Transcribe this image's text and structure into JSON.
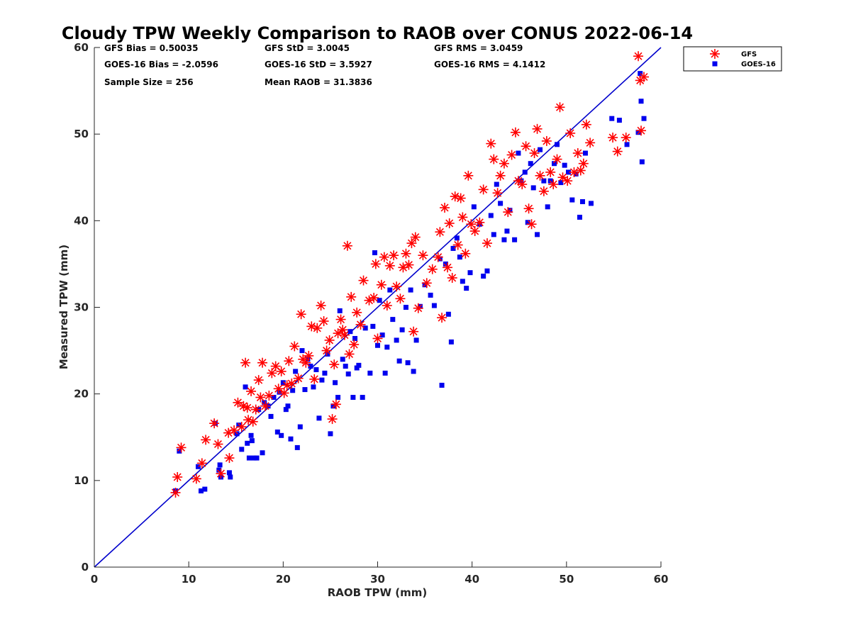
{
  "chart_data": {
    "type": "scatter",
    "title": "Cloudy TPW Weekly Comparison to RAOB over CONUS 2022-06-14",
    "xlabel": "RAOB TPW (mm)",
    "ylabel": "Measured TPW (mm)",
    "xlim": [
      0,
      60
    ],
    "ylim": [
      0,
      60
    ],
    "xticks": [
      "0",
      "10",
      "20",
      "30",
      "40",
      "50",
      "60"
    ],
    "yticks": [
      "0",
      "10",
      "20",
      "30",
      "40",
      "50",
      "60"
    ],
    "grid": false,
    "legend_position": "outside-top-right",
    "reference_line": {
      "from": [
        0,
        0
      ],
      "to": [
        60,
        60
      ],
      "color": "#0000cc"
    },
    "stats": {
      "gfs_bias": "GFS Bias = 0.50035",
      "gfs_std": "GFS StD = 3.0045",
      "gfs_rms": "GFS RMS = 3.0459",
      "goes_bias": "GOES-16 Bias = -2.0596",
      "goes_std": "GOES-16 StD = 3.5927",
      "goes_rms": "GOES-16 RMS = 4.1412",
      "sample_size": "Sample Size = 256",
      "mean_raob": "Mean RAOB = 31.3836"
    },
    "series": [
      {
        "name": "GFS",
        "marker": "asterisk",
        "color": "#ff0000",
        "points": [
          [
            8.6,
            8.6
          ],
          [
            8.8,
            10.4
          ],
          [
            9.2,
            13.8
          ],
          [
            10.8,
            10.2
          ],
          [
            11.4,
            12.0
          ],
          [
            11.8,
            14.7
          ],
          [
            12.7,
            16.6
          ],
          [
            13.1,
            14.2
          ],
          [
            13.4,
            10.8
          ],
          [
            14.2,
            15.5
          ],
          [
            14.3,
            12.6
          ],
          [
            14.8,
            15.8
          ],
          [
            15.2,
            19.0
          ],
          [
            15.6,
            16.2
          ],
          [
            15.8,
            18.6
          ],
          [
            16.0,
            23.6
          ],
          [
            16.2,
            18.4
          ],
          [
            16.3,
            17.0
          ],
          [
            16.6,
            20.3
          ],
          [
            16.8,
            16.8
          ],
          [
            17.1,
            18.2
          ],
          [
            17.4,
            21.6
          ],
          [
            17.6,
            19.6
          ],
          [
            17.8,
            23.6
          ],
          [
            18.1,
            18.6
          ],
          [
            18.5,
            19.8
          ],
          [
            18.8,
            22.4
          ],
          [
            19.2,
            23.2
          ],
          [
            19.5,
            20.6
          ],
          [
            19.8,
            22.6
          ],
          [
            20.1,
            20.1
          ],
          [
            20.4,
            21.0
          ],
          [
            20.6,
            23.8
          ],
          [
            20.9,
            21.2
          ],
          [
            21.2,
            25.5
          ],
          [
            21.6,
            21.8
          ],
          [
            21.9,
            29.2
          ],
          [
            22.1,
            24.0
          ],
          [
            22.4,
            23.6
          ],
          [
            22.7,
            24.4
          ],
          [
            23.0,
            27.8
          ],
          [
            23.3,
            21.7
          ],
          [
            23.6,
            27.6
          ],
          [
            24.0,
            30.2
          ],
          [
            24.3,
            28.4
          ],
          [
            24.6,
            25.0
          ],
          [
            24.9,
            26.2
          ],
          [
            25.2,
            17.1
          ],
          [
            25.4,
            23.4
          ],
          [
            25.6,
            18.8
          ],
          [
            25.8,
            27.0
          ],
          [
            26.1,
            28.6
          ],
          [
            26.3,
            27.4
          ],
          [
            26.5,
            26.8
          ],
          [
            26.8,
            37.1
          ],
          [
            27.0,
            24.6
          ],
          [
            27.2,
            31.2
          ],
          [
            27.5,
            25.7
          ],
          [
            27.8,
            29.4
          ],
          [
            28.2,
            28.0
          ],
          [
            28.5,
            33.1
          ],
          [
            29.1,
            30.8
          ],
          [
            29.6,
            31.1
          ],
          [
            29.8,
            35.0
          ],
          [
            30.0,
            26.4
          ],
          [
            30.4,
            32.6
          ],
          [
            30.7,
            35.8
          ],
          [
            31.0,
            30.2
          ],
          [
            31.3,
            34.8
          ],
          [
            31.7,
            36.0
          ],
          [
            32.0,
            32.4
          ],
          [
            32.4,
            31.0
          ],
          [
            32.7,
            34.6
          ],
          [
            33.0,
            36.2
          ],
          [
            33.3,
            34.9
          ],
          [
            33.6,
            37.4
          ],
          [
            33.8,
            27.2
          ],
          [
            34.0,
            38.1
          ],
          [
            34.3,
            29.9
          ],
          [
            34.8,
            36.0
          ],
          [
            35.2,
            32.8
          ],
          [
            35.8,
            34.4
          ],
          [
            36.4,
            35.8
          ],
          [
            36.6,
            38.7
          ],
          [
            36.8,
            28.8
          ],
          [
            37.1,
            41.5
          ],
          [
            37.4,
            34.6
          ],
          [
            37.6,
            39.7
          ],
          [
            37.9,
            33.4
          ],
          [
            38.2,
            42.8
          ],
          [
            38.5,
            37.2
          ],
          [
            38.8,
            42.6
          ],
          [
            39.0,
            40.4
          ],
          [
            39.3,
            36.2
          ],
          [
            39.6,
            45.2
          ],
          [
            39.9,
            39.6
          ],
          [
            40.3,
            38.8
          ],
          [
            40.8,
            39.8
          ],
          [
            41.2,
            43.6
          ],
          [
            41.6,
            37.4
          ],
          [
            42.0,
            48.9
          ],
          [
            42.3,
            47.1
          ],
          [
            42.7,
            43.2
          ],
          [
            43.0,
            45.2
          ],
          [
            43.4,
            46.6
          ],
          [
            43.8,
            41.0
          ],
          [
            44.2,
            47.6
          ],
          [
            44.6,
            50.2
          ],
          [
            44.9,
            44.6
          ],
          [
            45.3,
            44.2
          ],
          [
            45.7,
            48.6
          ],
          [
            46.0,
            41.4
          ],
          [
            46.3,
            39.6
          ],
          [
            46.6,
            47.8
          ],
          [
            46.9,
            50.6
          ],
          [
            47.2,
            45.2
          ],
          [
            47.6,
            43.4
          ],
          [
            47.9,
            49.2
          ],
          [
            48.3,
            45.6
          ],
          [
            48.6,
            44.2
          ],
          [
            49.0,
            47.1
          ],
          [
            49.3,
            53.1
          ],
          [
            49.6,
            45.0
          ],
          [
            50.1,
            44.6
          ],
          [
            50.4,
            50.1
          ],
          [
            50.8,
            45.6
          ],
          [
            51.2,
            47.8
          ],
          [
            51.5,
            45.8
          ],
          [
            51.8,
            46.6
          ],
          [
            52.1,
            51.1
          ],
          [
            52.5,
            49.0
          ],
          [
            54.9,
            49.6
          ],
          [
            55.4,
            48.0
          ],
          [
            56.3,
            49.6
          ],
          [
            57.6,
            59.0
          ],
          [
            57.8,
            56.2
          ],
          [
            57.9,
            50.4
          ],
          [
            58.2,
            56.6
          ]
        ]
      },
      {
        "name": "GOES-16",
        "marker": "square",
        "color": "#0000ee",
        "points": [
          [
            8.6,
            8.8
          ],
          [
            9.0,
            13.4
          ],
          [
            11.0,
            11.6
          ],
          [
            11.3,
            8.8
          ],
          [
            11.7,
            9.0
          ],
          [
            12.8,
            16.6
          ],
          [
            13.2,
            11.2
          ],
          [
            13.3,
            11.8
          ],
          [
            13.4,
            10.4
          ],
          [
            14.3,
            10.9
          ],
          [
            14.4,
            10.4
          ],
          [
            15.1,
            15.4
          ],
          [
            15.3,
            16.4
          ],
          [
            15.6,
            13.6
          ],
          [
            16.0,
            20.8
          ],
          [
            16.2,
            14.3
          ],
          [
            16.4,
            12.6
          ],
          [
            16.6,
            15.2
          ],
          [
            16.7,
            14.6
          ],
          [
            16.9,
            12.6
          ],
          [
            17.2,
            12.6
          ],
          [
            17.4,
            18.2
          ],
          [
            17.8,
            13.2
          ],
          [
            18.0,
            19.0
          ],
          [
            18.4,
            18.6
          ],
          [
            18.7,
            17.4
          ],
          [
            19.0,
            19.6
          ],
          [
            19.4,
            15.6
          ],
          [
            19.6,
            20.2
          ],
          [
            19.8,
            15.2
          ],
          [
            20.0,
            21.3
          ],
          [
            20.3,
            18.2
          ],
          [
            20.5,
            18.6
          ],
          [
            20.8,
            14.8
          ],
          [
            21.0,
            20.4
          ],
          [
            21.3,
            22.6
          ],
          [
            21.5,
            13.8
          ],
          [
            21.8,
            16.2
          ],
          [
            22.0,
            25.0
          ],
          [
            22.3,
            20.5
          ],
          [
            22.6,
            24.0
          ],
          [
            22.9,
            23.2
          ],
          [
            23.2,
            20.8
          ],
          [
            23.5,
            22.8
          ],
          [
            23.8,
            17.2
          ],
          [
            24.1,
            21.6
          ],
          [
            24.4,
            22.4
          ],
          [
            24.7,
            24.6
          ],
          [
            25.0,
            15.4
          ],
          [
            25.3,
            18.6
          ],
          [
            25.5,
            21.3
          ],
          [
            25.8,
            19.6
          ],
          [
            26.0,
            29.6
          ],
          [
            26.3,
            24.0
          ],
          [
            26.6,
            23.2
          ],
          [
            26.9,
            22.3
          ],
          [
            27.1,
            27.2
          ],
          [
            27.4,
            19.6
          ],
          [
            27.6,
            26.4
          ],
          [
            27.8,
            23.0
          ],
          [
            28.0,
            23.3
          ],
          [
            28.4,
            19.6
          ],
          [
            28.7,
            27.6
          ],
          [
            29.2,
            22.4
          ],
          [
            29.5,
            27.8
          ],
          [
            29.7,
            36.3
          ],
          [
            30.0,
            25.6
          ],
          [
            30.2,
            30.8
          ],
          [
            30.5,
            26.8
          ],
          [
            30.8,
            22.4
          ],
          [
            31.0,
            25.4
          ],
          [
            31.3,
            32.0
          ],
          [
            31.6,
            28.6
          ],
          [
            32.0,
            26.2
          ],
          [
            32.3,
            23.8
          ],
          [
            32.6,
            27.4
          ],
          [
            33.0,
            30.0
          ],
          [
            33.2,
            23.6
          ],
          [
            33.5,
            32.0
          ],
          [
            33.8,
            22.6
          ],
          [
            34.1,
            26.2
          ],
          [
            34.5,
            30.1
          ],
          [
            35.0,
            32.6
          ],
          [
            35.6,
            31.4
          ],
          [
            36.0,
            30.2
          ],
          [
            36.6,
            35.6
          ],
          [
            36.8,
            21.0
          ],
          [
            37.2,
            35.0
          ],
          [
            37.5,
            29.2
          ],
          [
            37.8,
            26.0
          ],
          [
            38.0,
            36.8
          ],
          [
            38.4,
            38.0
          ],
          [
            38.7,
            35.8
          ],
          [
            39.0,
            33.0
          ],
          [
            39.4,
            32.2
          ],
          [
            39.8,
            34.0
          ],
          [
            40.2,
            41.6
          ],
          [
            40.8,
            39.6
          ],
          [
            41.2,
            33.6
          ],
          [
            41.6,
            34.2
          ],
          [
            42.0,
            40.6
          ],
          [
            42.3,
            38.4
          ],
          [
            42.6,
            44.2
          ],
          [
            43.0,
            42.0
          ],
          [
            43.4,
            37.8
          ],
          [
            43.7,
            38.8
          ],
          [
            44.0,
            41.2
          ],
          [
            44.5,
            37.8
          ],
          [
            44.9,
            47.8
          ],
          [
            45.2,
            44.6
          ],
          [
            45.6,
            45.6
          ],
          [
            45.9,
            39.8
          ],
          [
            46.2,
            46.6
          ],
          [
            46.5,
            43.8
          ],
          [
            46.9,
            38.4
          ],
          [
            47.2,
            48.2
          ],
          [
            47.6,
            44.6
          ],
          [
            48.0,
            41.6
          ],
          [
            48.3,
            44.6
          ],
          [
            48.7,
            46.6
          ],
          [
            49.0,
            48.8
          ],
          [
            49.4,
            44.4
          ],
          [
            49.8,
            46.4
          ],
          [
            50.2,
            45.6
          ],
          [
            50.6,
            42.4
          ],
          [
            51.0,
            45.4
          ],
          [
            51.4,
            40.4
          ],
          [
            51.7,
            42.2
          ],
          [
            52.0,
            47.8
          ],
          [
            52.6,
            42.0
          ],
          [
            54.8,
            51.8
          ],
          [
            55.6,
            51.6
          ],
          [
            56.4,
            48.8
          ],
          [
            57.6,
            50.2
          ],
          [
            57.8,
            57.0
          ],
          [
            57.9,
            53.8
          ],
          [
            58.0,
            46.8
          ],
          [
            58.2,
            51.8
          ]
        ]
      }
    ]
  }
}
